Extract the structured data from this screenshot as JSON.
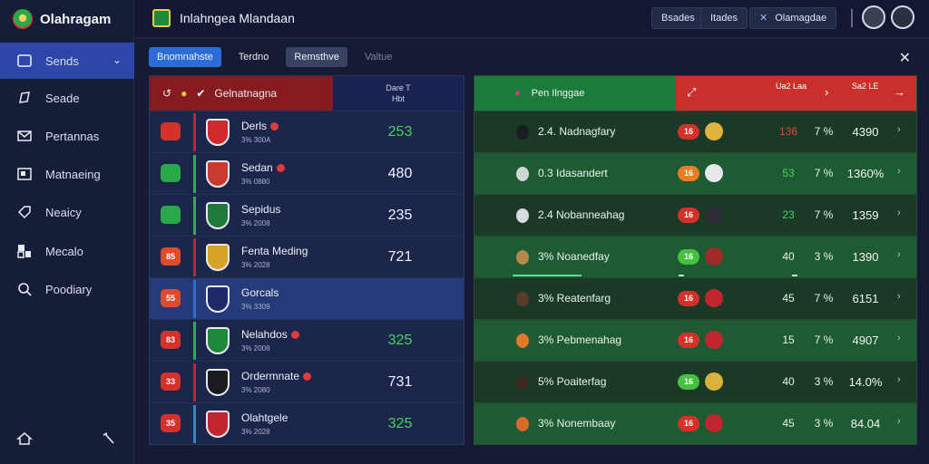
{
  "app": {
    "name": "Olahragam",
    "window_title": "Inlahngea Mlandaan"
  },
  "sidebar": {
    "items": [
      {
        "label": "Sends",
        "icon": "home-icon",
        "active": true
      },
      {
        "label": "Seade",
        "icon": "shield-icon"
      },
      {
        "label": "Pertannas",
        "icon": "mail-icon"
      },
      {
        "label": "Matnaeing",
        "icon": "image-icon"
      },
      {
        "label": "Neaicy",
        "icon": "tag-icon"
      },
      {
        "label": "Mecalo",
        "icon": "chart-icon"
      },
      {
        "label": "Poodiary",
        "icon": "search-icon"
      }
    ]
  },
  "topbar": {
    "btn1": "Bsades",
    "btn2": "Itades",
    "btn3": "Olamagdae"
  },
  "filters": {
    "chip1": "Bnomnahste",
    "chip2": "Terdno",
    "chip3": "Remsthve",
    "chip4": "Valtue"
  },
  "left_panel": {
    "title": "Gelnatnagna",
    "col_header_1": "Dare T",
    "col_header_2": "Hbt",
    "rows": [
      {
        "rank": "",
        "rank_color": "red",
        "name": "Derls",
        "sub": "3% 300A",
        "value": "253",
        "value_green": true,
        "stripe": "#c0262d",
        "crest": "#d02a2a",
        "live": true
      },
      {
        "rank": "",
        "rank_color": "green",
        "name": "Sedan",
        "sub": "3% 0880",
        "value": "480",
        "value_green": false,
        "stripe": "#2fb04d",
        "crest": "#c83b2e",
        "live": true
      },
      {
        "rank": "",
        "rank_color": "green",
        "name": "Sepidus",
        "sub": "3% 2008",
        "value": "235",
        "value_green": false,
        "stripe": "#2fb04d",
        "crest": "#1d7a3b",
        "live": false
      },
      {
        "rank": "85",
        "rank_color": "orange",
        "name": "Fenta Meding",
        "sub": "3% 2028",
        "value": "721",
        "value_green": false,
        "stripe": "#c0262d",
        "crest": "#d8a22a",
        "live": false
      },
      {
        "rank": "55",
        "rank_color": "orange",
        "name": "Gorcals",
        "sub": "3% 3309",
        "value": "",
        "value_green": false,
        "stripe": "#2b6cd6",
        "crest": "#1d2a6a",
        "live": false
      },
      {
        "rank": "83",
        "rank_color": "red",
        "name": "Nelahdos",
        "sub": "3% 2008",
        "value": "325",
        "value_green": true,
        "stripe": "#2fb04d",
        "crest": "#1d8a3b",
        "live": true
      },
      {
        "rank": "33",
        "rank_color": "red",
        "name": "Ordermnate",
        "sub": "3% 2080",
        "value": "731",
        "value_green": false,
        "stripe": "#c0262d",
        "crest": "#1b1b22",
        "live": true
      },
      {
        "rank": "35",
        "rank_color": "red",
        "name": "Olahtgele",
        "sub": "3% 2028",
        "value": "325",
        "value_green": true,
        "stripe": "#2b8ac6",
        "crest": "#c0262d",
        "live": false
      }
    ]
  },
  "right_panel": {
    "title": "Pen Ilnggae",
    "col_1": "Ua2 Laa",
    "col_2": "Sa2 LE",
    "rows": [
      {
        "label": "2.4. Nadnagfary",
        "pill": "16",
        "pill_color": "red",
        "a": "136",
        "a_color": "#e0463c",
        "b": "7 %",
        "c": "4390",
        "ball": "#1b1b22",
        "badge": "#e0b33c"
      },
      {
        "label": "0.3 Idasandert",
        "pill": "16",
        "pill_color": "orange",
        "a": "53",
        "a_color": "#44d35e",
        "b": "7 %",
        "c": "1360%",
        "ball": "#cfd6cf",
        "badge": "#e8e8ea"
      },
      {
        "label": "2.4 Nobanneahag",
        "pill": "16",
        "pill_color": "red",
        "a": "23",
        "a_color": "#44d35e",
        "b": "7 %",
        "c": "1359",
        "ball": "#d9dbe0",
        "badge": "#2c2c35"
      },
      {
        "label": "3% Noanedfay",
        "pill": "16",
        "pill_color": "green",
        "a": "40",
        "a_color": "#e9f4ec",
        "b": "3 %",
        "c": "1390",
        "ball": "#b48a4a",
        "badge": "#9e2a2a"
      },
      {
        "label": "3% Reatenfarg",
        "pill": "16",
        "pill_color": "red",
        "a": "45",
        "a_color": "#e9f4ec",
        "b": "7 %",
        "c": "6151",
        "ball": "#5a3a2a",
        "badge": "#c0262d"
      },
      {
        "label": "3% Pebmenahag",
        "pill": "16",
        "pill_color": "red",
        "a": "15",
        "a_color": "#e9f4ec",
        "b": "7 %",
        "c": "4907",
        "ball": "#e07a2a",
        "badge": "#c0262d"
      },
      {
        "label": "5% Poaiterfag",
        "pill": "16",
        "pill_color": "green",
        "a": "40",
        "a_color": "#e9f4ec",
        "b": "3 %",
        "c": "14.0%",
        "ball": "#3a2a22",
        "badge": "#d8b23a"
      },
      {
        "label": "3% Nonembaay",
        "pill": "16",
        "pill_color": "red",
        "a": "45",
        "a_color": "#e9f4ec",
        "b": "3 %",
        "c": "84.04",
        "ball": "#d86a2a",
        "badge": "#c0262d"
      }
    ]
  }
}
